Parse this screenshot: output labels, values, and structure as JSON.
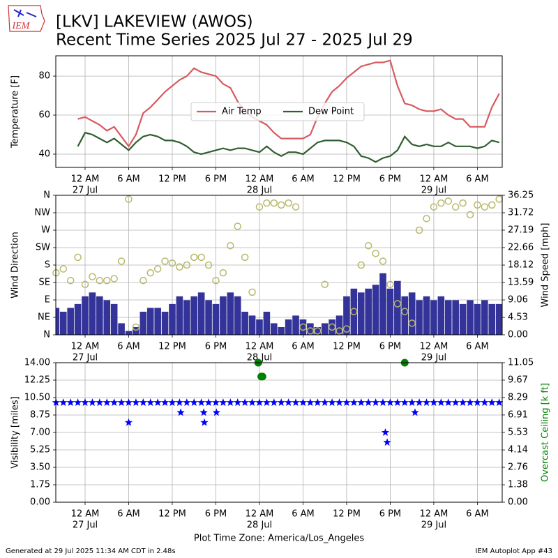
{
  "title": "[LKV] LAKEVIEW (AWOS)",
  "subtitle": "Recent Time Series 2025 Jul 27 - 2025 Jul 29",
  "logo": "IEM",
  "footer": {
    "left": "Generated at 29 Jul 2025 11:34 AM CDT in 2.48s",
    "right": "IEM Autoplot App #43"
  },
  "chart_data": [
    {
      "type": "line",
      "ylabel": "Temperature [F]",
      "grid": true,
      "legend": "center",
      "xlim": [
        "2025-07-26 19:58",
        "2025-07-29 09:25"
      ],
      "ylim": [
        33.2,
        90.4
      ],
      "yticks": [
        40,
        60,
        80
      ],
      "xticks": [
        {
          "value": "2025-07-27 00:00",
          "label": "12 AM",
          "sublabel": "27 Jul"
        },
        {
          "value": "2025-07-27 06:00",
          "label": "6 AM"
        },
        {
          "value": "2025-07-27 12:00",
          "label": "12 PM"
        },
        {
          "value": "2025-07-27 18:00",
          "label": "6 PM"
        },
        {
          "value": "2025-07-28 00:00",
          "label": "12 AM",
          "sublabel": "28 Jul"
        },
        {
          "value": "2025-07-28 06:00",
          "label": "6 AM"
        },
        {
          "value": "2025-07-28 12:00",
          "label": "12 PM"
        },
        {
          "value": "2025-07-28 18:00",
          "label": "6 PM"
        },
        {
          "value": "2025-07-29 00:00",
          "label": "12 AM",
          "sublabel": "29 Jul"
        },
        {
          "value": "2025-07-29 06:00",
          "label": "6 AM"
        }
      ],
      "x": [
        "2025-07-26 23:00",
        "2025-07-27 00:00",
        "2025-07-27 01:00",
        "2025-07-27 02:00",
        "2025-07-27 03:00",
        "2025-07-27 04:00",
        "2025-07-27 05:00",
        "2025-07-27 06:00",
        "2025-07-27 07:00",
        "2025-07-27 08:00",
        "2025-07-27 09:00",
        "2025-07-27 10:00",
        "2025-07-27 11:00",
        "2025-07-27 12:00",
        "2025-07-27 13:00",
        "2025-07-27 14:00",
        "2025-07-27 15:00",
        "2025-07-27 16:00",
        "2025-07-27 17:00",
        "2025-07-27 18:00",
        "2025-07-27 19:00",
        "2025-07-27 20:00",
        "2025-07-27 21:00",
        "2025-07-27 22:00",
        "2025-07-27 23:00",
        "2025-07-28 00:00",
        "2025-07-28 01:00",
        "2025-07-28 02:00",
        "2025-07-28 03:00",
        "2025-07-28 04:00",
        "2025-07-28 05:00",
        "2025-07-28 06:00",
        "2025-07-28 07:00",
        "2025-07-28 08:00",
        "2025-07-28 09:00",
        "2025-07-28 10:00",
        "2025-07-28 11:00",
        "2025-07-28 12:00",
        "2025-07-28 13:00",
        "2025-07-28 14:00",
        "2025-07-28 15:00",
        "2025-07-28 16:00",
        "2025-07-28 17:00",
        "2025-07-28 18:00",
        "2025-07-28 19:00",
        "2025-07-28 20:00",
        "2025-07-28 21:00",
        "2025-07-28 22:00",
        "2025-07-28 23:00",
        "2025-07-29 00:00",
        "2025-07-29 01:00",
        "2025-07-29 02:00",
        "2025-07-29 03:00",
        "2025-07-29 04:00",
        "2025-07-29 05:00",
        "2025-07-29 06:00",
        "2025-07-29 07:00",
        "2025-07-29 08:00",
        "2025-07-29 09:00"
      ],
      "series": [
        {
          "name": "Air Temp",
          "color": "#d9595f",
          "mark": "line",
          "values": [
            58,
            59,
            57,
            55,
            52,
            54,
            49,
            44,
            50,
            61,
            64,
            68,
            72,
            75,
            78,
            80,
            84,
            82,
            81,
            80,
            76,
            74,
            67,
            62,
            59,
            57,
            55,
            51,
            48,
            48,
            48,
            48,
            50,
            59,
            66,
            72,
            75,
            79,
            82,
            85,
            86,
            87,
            87,
            88,
            75,
            66,
            65,
            63,
            62,
            62,
            63,
            60,
            58,
            58,
            54,
            54,
            54,
            64,
            71
          ]
        },
        {
          "name": "Dew Point",
          "color": "#2e5e2e",
          "mark": "line",
          "values": [
            44,
            51,
            50,
            48,
            46,
            48,
            45,
            42,
            46,
            49,
            50,
            49,
            47,
            47,
            46,
            44,
            41,
            40,
            41,
            42,
            43,
            42,
            43,
            43,
            42,
            41,
            44,
            41,
            39,
            41,
            41,
            40,
            43,
            46,
            47,
            47,
            47,
            46,
            44,
            39,
            38,
            36,
            38,
            39,
            42,
            49,
            45,
            44,
            45,
            44,
            44,
            46,
            44,
            44,
            44,
            43,
            44,
            47,
            46
          ]
        }
      ]
    },
    {
      "type": "combo",
      "ylabel": "Wind Direction",
      "y2label": "Wind Speed [mph]",
      "grid": true,
      "xlim": [
        "2025-07-26 19:58",
        "2025-07-29 09:25"
      ],
      "ylim": [
        0,
        360
      ],
      "yticks": [
        {
          "value": 0,
          "label": "N"
        },
        {
          "value": 45,
          "label": "NE"
        },
        {
          "value": 90,
          "label": "E"
        },
        {
          "value": 135,
          "label": "SE"
        },
        {
          "value": 180,
          "label": "S"
        },
        {
          "value": 225,
          "label": "SW"
        },
        {
          "value": 270,
          "label": "W"
        },
        {
          "value": 315,
          "label": "NW"
        },
        {
          "value": 360,
          "label": "N"
        }
      ],
      "y2lim": [
        0,
        36.25
      ],
      "y2ticks": [
        {
          "value": 0,
          "label": "0.00"
        },
        4.53,
        9.06,
        13.59,
        18.12,
        22.66,
        27.19,
        31.72,
        36.25
      ],
      "xticks": [
        {
          "value": "2025-07-27 00:00",
          "label": "12 AM",
          "sublabel": "27 Jul"
        },
        {
          "value": "2025-07-27 06:00",
          "label": "6 AM"
        },
        {
          "value": "2025-07-27 12:00",
          "label": "12 PM"
        },
        {
          "value": "2025-07-27 18:00",
          "label": "6 PM"
        },
        {
          "value": "2025-07-28 00:00",
          "label": "12 AM",
          "sublabel": "28 Jul"
        },
        {
          "value": "2025-07-28 06:00",
          "label": "6 AM"
        },
        {
          "value": "2025-07-28 12:00",
          "label": "12 PM"
        },
        {
          "value": "2025-07-28 18:00",
          "label": "6 PM"
        },
        {
          "value": "2025-07-29 00:00",
          "label": "12 AM",
          "sublabel": "29 Jul"
        },
        {
          "value": "2025-07-29 06:00",
          "label": "6 AM"
        }
      ],
      "x": [
        "2025-07-26 20:00",
        "2025-07-26 21:00",
        "2025-07-26 22:00",
        "2025-07-26 23:00",
        "2025-07-27 00:00",
        "2025-07-27 01:00",
        "2025-07-27 02:00",
        "2025-07-27 03:00",
        "2025-07-27 04:00",
        "2025-07-27 05:00",
        "2025-07-27 06:00",
        "2025-07-27 07:00",
        "2025-07-27 08:00",
        "2025-07-27 09:00",
        "2025-07-27 10:00",
        "2025-07-27 11:00",
        "2025-07-27 12:00",
        "2025-07-27 13:00",
        "2025-07-27 14:00",
        "2025-07-27 15:00",
        "2025-07-27 16:00",
        "2025-07-27 17:00",
        "2025-07-27 18:00",
        "2025-07-27 19:00",
        "2025-07-27 20:00",
        "2025-07-27 21:00",
        "2025-07-27 22:00",
        "2025-07-27 23:00",
        "2025-07-28 00:00",
        "2025-07-28 01:00",
        "2025-07-28 02:00",
        "2025-07-28 03:00",
        "2025-07-28 04:00",
        "2025-07-28 05:00",
        "2025-07-28 06:00",
        "2025-07-28 07:00",
        "2025-07-28 08:00",
        "2025-07-28 09:00",
        "2025-07-28 10:00",
        "2025-07-28 11:00",
        "2025-07-28 12:00",
        "2025-07-28 13:00",
        "2025-07-28 14:00",
        "2025-07-28 15:00",
        "2025-07-28 16:00",
        "2025-07-28 17:00",
        "2025-07-28 18:00",
        "2025-07-28 19:00",
        "2025-07-28 20:00",
        "2025-07-28 21:00",
        "2025-07-28 22:00",
        "2025-07-28 23:00",
        "2025-07-29 00:00",
        "2025-07-29 01:00",
        "2025-07-29 02:00",
        "2025-07-29 03:00",
        "2025-07-29 04:00",
        "2025-07-29 05:00",
        "2025-07-29 06:00",
        "2025-07-29 07:00",
        "2025-07-29 08:00",
        "2025-07-29 09:00"
      ],
      "series": [
        {
          "color": "#333399",
          "mark": "bar",
          "axis": "y2",
          "values": [
            7,
            6,
            7,
            8,
            10,
            11,
            10,
            9,
            8,
            3,
            1,
            2,
            6,
            7,
            7,
            6,
            8,
            10,
            9,
            10,
            11,
            9,
            8,
            10,
            11,
            10,
            6,
            5,
            4,
            6,
            3,
            2,
            4,
            5,
            4,
            3,
            2,
            3,
            4,
            5,
            10,
            12,
            11,
            12,
            13,
            16,
            12,
            14,
            10,
            11,
            9,
            10,
            9,
            10,
            9,
            9,
            8,
            9,
            8,
            9,
            8,
            8
          ]
        },
        {
          "color": "#b8b86b",
          "mark": "circle",
          "values": [
            160,
            170,
            140,
            200,
            130,
            150,
            140,
            140,
            145,
            190,
            350,
            20,
            140,
            160,
            170,
            190,
            185,
            175,
            180,
            200,
            200,
            180,
            140,
            160,
            230,
            280,
            200,
            110,
            330,
            340,
            340,
            335,
            340,
            330,
            20,
            10,
            10,
            130,
            20,
            10,
            15,
            60,
            180,
            230,
            210,
            190,
            130,
            80,
            60,
            30,
            270,
            300,
            330,
            340,
            345,
            330,
            340,
            310,
            335,
            330,
            335,
            350
          ]
        }
      ]
    },
    {
      "type": "scatter",
      "ylabel": "Visibility [miles]",
      "y2label": "Overcast Ceiling [k ft]",
      "y2label_color": "green",
      "xlabel": "Plot Time Zone: America/Los_Angeles",
      "grid": true,
      "xlim": [
        "2025-07-26 19:58",
        "2025-07-29 09:25"
      ],
      "ylim": [
        0,
        14
      ],
      "yticks": [
        {
          "value": 0,
          "label": "0.00"
        },
        1.75,
        {
          "value": 3.5,
          "label": "3.50"
        },
        5.25,
        {
          "value": 7,
          "label": "7.00"
        },
        8.75,
        {
          "value": 10.5,
          "label": "10.50"
        },
        12.25,
        {
          "value": 14,
          "label": "14.00"
        }
      ],
      "y2lim": [
        0,
        11.05
      ],
      "y2ticks": [
        {
          "value": 0,
          "label": "0.00"
        },
        1.38,
        2.76,
        4.14,
        5.53,
        6.91,
        8.29,
        9.67,
        11.05
      ],
      "xticks": [
        {
          "value": "2025-07-27 00:00",
          "label": "12 AM",
          "sublabel": "27 Jul"
        },
        {
          "value": "2025-07-27 06:00",
          "label": "6 AM"
        },
        {
          "value": "2025-07-27 12:00",
          "label": "12 PM"
        },
        {
          "value": "2025-07-27 18:00",
          "label": "6 PM"
        },
        {
          "value": "2025-07-28 00:00",
          "label": "12 AM",
          "sublabel": "28 Jul"
        },
        {
          "value": "2025-07-28 06:00",
          "label": "6 AM"
        },
        {
          "value": "2025-07-28 12:00",
          "label": "12 PM"
        },
        {
          "value": "2025-07-28 18:00",
          "label": "6 PM"
        },
        {
          "value": "2025-07-29 00:00",
          "label": "12 AM",
          "sublabel": "29 Jul"
        },
        {
          "value": "2025-07-29 06:00",
          "label": "6 AM"
        }
      ],
      "series": [
        {
          "color": "blue",
          "mark": "star",
          "x": [
            "2025-07-26 20:00",
            "2025-07-26 21:00",
            "2025-07-26 22:00",
            "2025-07-26 23:00",
            "2025-07-27 00:00",
            "2025-07-27 01:00",
            "2025-07-27 02:00",
            "2025-07-27 03:00",
            "2025-07-27 04:00",
            "2025-07-27 05:00",
            "2025-07-27 06:00",
            "2025-07-27 07:00",
            "2025-07-27 08:00",
            "2025-07-27 09:00",
            "2025-07-27 10:00",
            "2025-07-27 11:00",
            "2025-07-27 12:00",
            "2025-07-27 13:00",
            "2025-07-27 14:00",
            "2025-07-27 15:00",
            "2025-07-27 16:00",
            "2025-07-27 17:00",
            "2025-07-27 18:00",
            "2025-07-27 19:00",
            "2025-07-27 20:00",
            "2025-07-27 21:00",
            "2025-07-27 22:00",
            "2025-07-27 23:00",
            "2025-07-28 00:00",
            "2025-07-28 01:00",
            "2025-07-28 02:00",
            "2025-07-28 03:00",
            "2025-07-28 04:00",
            "2025-07-28 05:00",
            "2025-07-28 06:00",
            "2025-07-28 07:00",
            "2025-07-28 08:00",
            "2025-07-28 09:00",
            "2025-07-28 10:00",
            "2025-07-28 11:00",
            "2025-07-28 12:00",
            "2025-07-28 13:00",
            "2025-07-28 14:00",
            "2025-07-28 15:00",
            "2025-07-28 16:00",
            "2025-07-28 17:00",
            "2025-07-28 18:00",
            "2025-07-28 19:00",
            "2025-07-28 20:00",
            "2025-07-28 21:00",
            "2025-07-28 22:00",
            "2025-07-28 23:00",
            "2025-07-29 00:00",
            "2025-07-29 01:00",
            "2025-07-29 02:00",
            "2025-07-29 03:00",
            "2025-07-29 04:00",
            "2025-07-29 05:00",
            "2025-07-29 06:00",
            "2025-07-29 07:00",
            "2025-07-29 08:00",
            "2025-07-29 09:00"
          ],
          "values": [
            10,
            10,
            10,
            10,
            10,
            10,
            10,
            10,
            10,
            10,
            10,
            10,
            10,
            10,
            10,
            10,
            10,
            10,
            10,
            10,
            10,
            10,
            10,
            10,
            10,
            10,
            10,
            10,
            10,
            10,
            10,
            10,
            10,
            10,
            10,
            10,
            10,
            10,
            10,
            10,
            10,
            10,
            10,
            10,
            10,
            10,
            10,
            10,
            10,
            10,
            10,
            10,
            10,
            10,
            10,
            10,
            10,
            10,
            10,
            10,
            10,
            10
          ]
        },
        {
          "color": "blue",
          "mark": "star",
          "x": [
            "2025-07-27 06:00",
            "2025-07-27 13:10",
            "2025-07-27 16:20",
            "2025-07-27 16:25",
            "2025-07-27 18:05",
            "2025-07-28 17:20",
            "2025-07-28 17:35",
            "2025-07-28 21:25"
          ],
          "values": [
            8,
            9,
            9,
            8,
            9,
            7,
            6,
            9
          ]
        },
        {
          "color": "green",
          "mark": "dot",
          "axis": "y2",
          "x": [
            "2025-07-27 23:50",
            "2025-07-28 00:15",
            "2025-07-28 00:25",
            "2025-07-28 20:00"
          ],
          "values": [
            11.05,
            9.95,
            9.95,
            11.05
          ]
        }
      ]
    }
  ]
}
